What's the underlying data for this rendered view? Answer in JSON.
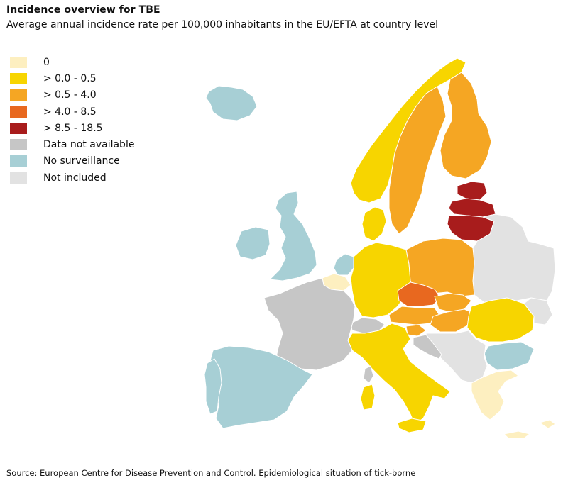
{
  "title": "Incidence overview for TBE",
  "subtitle": "Average annual incidence rate per 100,000 inhabitants in the EU/EFTA at country level",
  "legend": [
    {
      "label": "0",
      "color": "#fdefc0"
    },
    {
      "label": "> 0.0 - 0.5",
      "color": "#f7d500"
    },
    {
      "label": "> 0.5 - 4.0",
      "color": "#f5a623"
    },
    {
      "label": "> 4.0 - 8.5",
      "color": "#e8681f"
    },
    {
      "label": "> 8.5 - 18.5",
      "color": "#a81c1c"
    },
    {
      "label": "Data not available",
      "color": "#c6c6c6"
    },
    {
      "label": "No surveillance",
      "color": "#a7cfd5"
    },
    {
      "label": "Not included",
      "color": "#e2e2e2"
    }
  ],
  "source": "Source: European Centre for Disease Prevention and Control. Epidemiological situation of tick-borne"
}
